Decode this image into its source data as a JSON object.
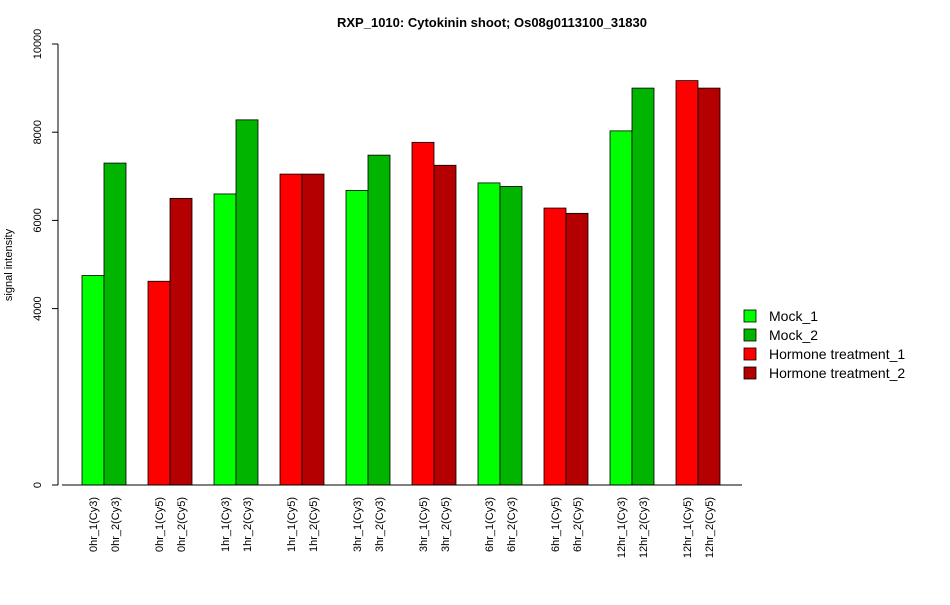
{
  "chart_data": {
    "type": "bar",
    "title": "RXP_1010: Cytokinin shoot; Os08g0113100_31830",
    "xlabel": "",
    "ylabel": "signal intensity",
    "ylim": [
      0,
      10000
    ],
    "yticks": [
      0,
      4000,
      6000,
      8000,
      10000
    ],
    "grid": false,
    "legend_position": "right",
    "legend": [
      {
        "name": "Mock_1",
        "color": "#00ff00"
      },
      {
        "name": "Mock_2",
        "color": "#00b400"
      },
      {
        "name": "Hormone treatment_1",
        "color": "#ff0000"
      },
      {
        "name": "Hormone treatment_2",
        "color": "#b40000"
      }
    ],
    "groups": [
      {
        "bars": [
          {
            "label": "0hr_1(Cy3)",
            "value": 4750,
            "color": "#00ff00"
          },
          {
            "label": "0hr_2(Cy3)",
            "value": 7300,
            "color": "#00b400"
          }
        ]
      },
      {
        "bars": [
          {
            "label": "0hr_1(Cy5)",
            "value": 4620,
            "color": "#ff0000"
          },
          {
            "label": "0hr_2(Cy5)",
            "value": 6500,
            "color": "#b40000"
          }
        ]
      },
      {
        "bars": [
          {
            "label": "1hr_1(Cy3)",
            "value": 6600,
            "color": "#00ff00"
          },
          {
            "label": "1hr_2(Cy3)",
            "value": 8280,
            "color": "#00b400"
          }
        ]
      },
      {
        "bars": [
          {
            "label": "1hr_1(Cy5)",
            "value": 7050,
            "color": "#ff0000"
          },
          {
            "label": "1hr_2(Cy5)",
            "value": 7050,
            "color": "#b40000"
          }
        ]
      },
      {
        "bars": [
          {
            "label": "3hr_1(Cy3)",
            "value": 6680,
            "color": "#00ff00"
          },
          {
            "label": "3hr_2(Cy3)",
            "value": 7480,
            "color": "#00b400"
          }
        ]
      },
      {
        "bars": [
          {
            "label": "3hr_1(Cy5)",
            "value": 7770,
            "color": "#ff0000"
          },
          {
            "label": "3hr_2(Cy5)",
            "value": 7250,
            "color": "#b40000"
          }
        ]
      },
      {
        "bars": [
          {
            "label": "6hr_1(Cy3)",
            "value": 6850,
            "color": "#00ff00"
          },
          {
            "label": "6hr_2(Cy3)",
            "value": 6770,
            "color": "#00b400"
          }
        ]
      },
      {
        "bars": [
          {
            "label": "6hr_1(Cy5)",
            "value": 6280,
            "color": "#ff0000"
          },
          {
            "label": "6hr_2(Cy5)",
            "value": 6160,
            "color": "#b40000"
          }
        ]
      },
      {
        "bars": [
          {
            "label": "12hr_1(Cy3)",
            "value": 8030,
            "color": "#00ff00"
          },
          {
            "label": "12hr_2(Cy3)",
            "value": 9000,
            "color": "#00b400"
          }
        ]
      },
      {
        "bars": [
          {
            "label": "12hr_1(Cy5)",
            "value": 9170,
            "color": "#ff0000"
          },
          {
            "label": "12hr_2(Cy5)",
            "value": 9000,
            "color": "#b40000"
          }
        ]
      }
    ]
  }
}
